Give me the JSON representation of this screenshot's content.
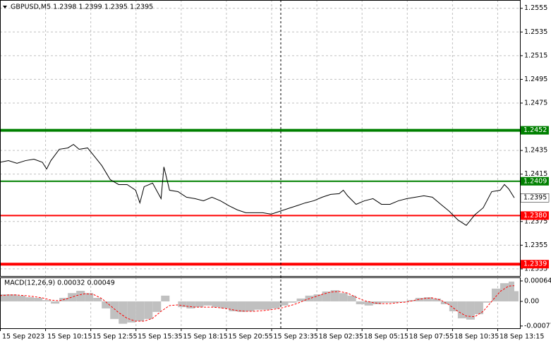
{
  "chart_data": [
    {
      "type": "line",
      "title": "GBPUSD,M5  1.2398 1.2399 1.2395 1.2395",
      "xlim": [
        0,
        368
      ],
      "ylim": [
        1.2329,
        1.2562
      ],
      "yticks": [
        1.2555,
        1.2535,
        1.2515,
        1.2495,
        1.2475,
        1.2435,
        1.2415,
        1.2375,
        1.2355,
        1.2335
      ],
      "grid": true,
      "x": [
        0,
        6,
        12,
        18,
        24,
        30,
        33,
        36,
        42,
        48,
        52,
        56,
        62,
        66,
        72,
        78,
        84,
        90,
        96,
        99,
        102,
        108,
        114,
        116,
        120,
        126,
        132,
        138,
        144,
        150,
        156,
        162,
        168,
        174,
        180,
        186,
        192,
        198,
        204,
        210,
        216,
        222,
        228,
        234,
        240,
        243,
        246,
        252,
        258,
        264,
        270,
        276,
        282,
        288,
        294,
        300,
        306,
        312,
        318,
        324,
        330,
        336,
        342,
        348,
        354,
        357,
        360,
        364
      ],
      "series": [
        {
          "color": "#000000",
          "values": [
            1.2425,
            1.24264,
            1.24241,
            1.24264,
            1.24276,
            1.2425,
            1.24193,
            1.24264,
            1.2436,
            1.24371,
            1.24401,
            1.2436,
            1.24371,
            1.24312,
            1.24223,
            1.24104,
            1.24062,
            1.24062,
            1.24014,
            1.23907,
            1.24044,
            1.24074,
            1.23943,
            1.24211,
            1.24014,
            1.24002,
            1.23955,
            1.23943,
            1.23925,
            1.23955,
            1.23925,
            1.23883,
            1.23848,
            1.23824,
            1.23824,
            1.23824,
            1.23812,
            1.23836,
            1.2386,
            1.23883,
            1.23907,
            1.23925,
            1.23955,
            1.23979,
            1.23985,
            1.24014,
            1.23967,
            1.23895,
            1.23925,
            1.23943,
            1.23895,
            1.23895,
            1.23925,
            1.23943,
            1.23955,
            1.23967,
            1.23955,
            1.23895,
            1.23836,
            1.23764,
            1.23717,
            1.23806,
            1.23866,
            1.24002,
            1.24014,
            1.24062,
            1.24026,
            1.2395
          ]
        }
      ],
      "levels": [
        {
          "value": 1.2452,
          "color": "#008000",
          "width": 4
        },
        {
          "value": 1.2409,
          "color": "#008000",
          "width": 2
        },
        {
          "value": 1.238,
          "label": "1.2380",
          "color": "#ff0000",
          "width": 2
        },
        {
          "value": 1.2339,
          "color": "#ff0000",
          "width": 4
        }
      ],
      "last_price": 1.2395
    },
    {
      "type": "bar",
      "title": "MACD(12,26,9) 0.00032 0.00049",
      "xlim": [
        0,
        368
      ],
      "ylim": [
        -0.00084,
        0.00075
      ],
      "yticks": [
        0.00064,
        {
          "value": 0,
          "label": "0.00"
        },
        -0.00077
      ],
      "xticks": [
        {
          "value": 0,
          "label": "15 Sep 2023"
        },
        {
          "value": 32,
          "label": "15 Sep 10:15"
        },
        {
          "value": 64,
          "label": "15 Sep 12:55"
        },
        {
          "value": 96,
          "label": "15 Sep 15:35"
        },
        {
          "value": 128,
          "label": "15 Sep 18:15"
        },
        {
          "value": 160,
          "label": "15 Sep 20:55"
        },
        {
          "value": 192,
          "label": "15 Sep 23:35"
        },
        {
          "value": 224,
          "label": "18 Sep 02:35"
        },
        {
          "value": 256,
          "label": "18 Sep 05:15"
        },
        {
          "value": 288,
          "label": "18 Sep 07:55"
        },
        {
          "value": 320,
          "label": "18 Sep 10:35"
        },
        {
          "value": 352,
          "label": "18 Sep 13:15"
        }
      ],
      "x": [
        0,
        6,
        12,
        18,
        24,
        30,
        36,
        42,
        48,
        54,
        60,
        66,
        72,
        78,
        84,
        90,
        96,
        102,
        108,
        114,
        120,
        126,
        132,
        138,
        144,
        150,
        156,
        162,
        168,
        174,
        180,
        186,
        192,
        198,
        204,
        210,
        216,
        222,
        228,
        234,
        240,
        246,
        252,
        258,
        264,
        270,
        276,
        282,
        288,
        294,
        300,
        306,
        312,
        318,
        324,
        330,
        336,
        342,
        348,
        354,
        360,
        364
      ],
      "series": [
        {
          "color": "#c0c0c0",
          "values": [
            0.00022,
            0.00022,
            0.00018,
            0.00013,
            0.00011,
            4e-05,
            -7e-05,
            0.00011,
            0.00026,
            0.00033,
            0.00026,
            0.00011,
            -0.00022,
            -0.00055,
            -0.0007,
            -0.00066,
            -0.00062,
            -0.00055,
            -0.00033,
            0.00018,
            0,
            -0.00018,
            -0.00022,
            -0.00018,
            -0.00013,
            -0.00018,
            -0.00022,
            -0.00031,
            -0.00033,
            -0.00031,
            -0.00026,
            -0.00026,
            -0.00022,
            -0.00013,
            -4e-05,
            9e-05,
            0.00018,
            0.00022,
            0.00031,
            0.00035,
            0.00026,
            0.00018,
            -9e-05,
            -0.00013,
            -9e-05,
            -4e-05,
            -4e-05,
            -2e-05,
            4e-05,
            0.00011,
            0.00013,
            9e-05,
            -9e-05,
            -0.00031,
            -0.00053,
            -0.00057,
            -0.0004,
            -4e-05,
            0.0004,
            0.00057,
            0.00062,
            0.00032
          ]
        },
        {
          "type": "line",
          "color": "#ff0000",
          "dashed": true,
          "values": [
            0.00018,
            0.0002,
            0.0002,
            0.00018,
            0.00015,
            0.00011,
            4e-05,
            2e-05,
            9e-05,
            0.00018,
            0.00024,
            0.00022,
            9e-05,
            -0.00013,
            -0.00035,
            -0.00053,
            -0.00062,
            -0.00062,
            -0.00053,
            -0.00031,
            -0.00013,
            -0.00011,
            -0.00015,
            -0.00018,
            -0.00018,
            -0.00018,
            -0.0002,
            -0.00024,
            -0.00029,
            -0.00031,
            -0.00031,
            -0.00029,
            -0.00026,
            -0.00022,
            -0.00015,
            -7e-05,
            4e-05,
            0.00013,
            0.00022,
            0.00029,
            0.00031,
            0.00026,
            0.00013,
            2e-05,
            -4e-05,
            -7e-05,
            -7e-05,
            -4e-05,
            -2e-05,
            4e-05,
            9e-05,
            0.00011,
            4e-05,
            -0.00011,
            -0.00031,
            -0.00046,
            -0.00048,
            -0.00031,
            0,
            0.00031,
            0.00048,
            0.00049
          ]
        }
      ]
    }
  ]
}
